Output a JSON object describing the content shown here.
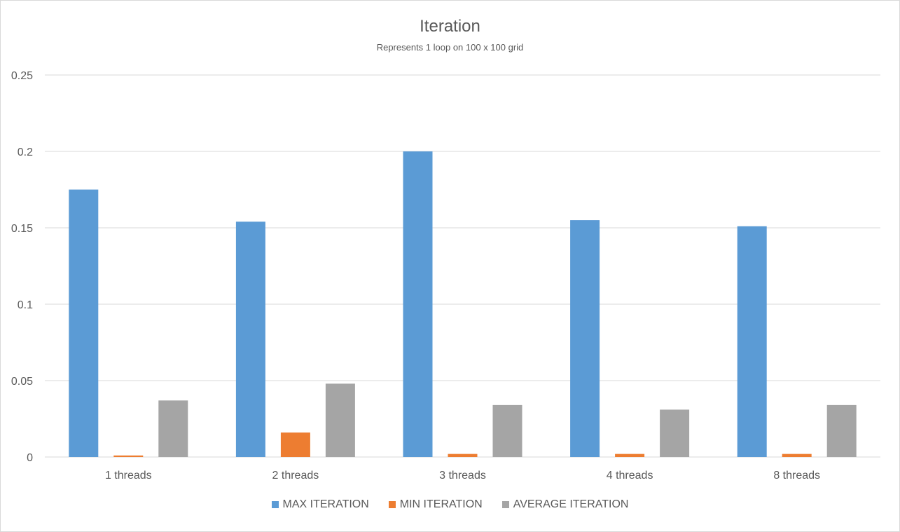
{
  "chart_data": {
    "type": "bar",
    "title": "Iteration",
    "subtitle": "Represents 1 loop on 100 x 100 grid",
    "xlabel": "",
    "ylabel": "",
    "categories": [
      "1 threads",
      "2 threads",
      "3 threads",
      "4 threads",
      "8 threads"
    ],
    "ylim": [
      0,
      0.25
    ],
    "yticks": [
      0,
      0.05,
      0.1,
      0.15,
      0.2,
      0.25
    ],
    "ytick_labels": [
      "0",
      "0.05",
      "0.1",
      "0.15",
      "0.2",
      "0.25"
    ],
    "grid": true,
    "legend_position": "bottom",
    "series": [
      {
        "name": "MAX ITERATION",
        "color": "#5b9bd5",
        "values": [
          0.175,
          0.154,
          0.2,
          0.155,
          0.151
        ]
      },
      {
        "name": "MIN ITERATION",
        "color": "#ed7d31",
        "values": [
          0.001,
          0.016,
          0.002,
          0.002,
          0.002
        ]
      },
      {
        "name": "AVERAGE ITERATION",
        "color": "#a5a5a5",
        "values": [
          0.037,
          0.048,
          0.034,
          0.031,
          0.034
        ]
      }
    ]
  }
}
